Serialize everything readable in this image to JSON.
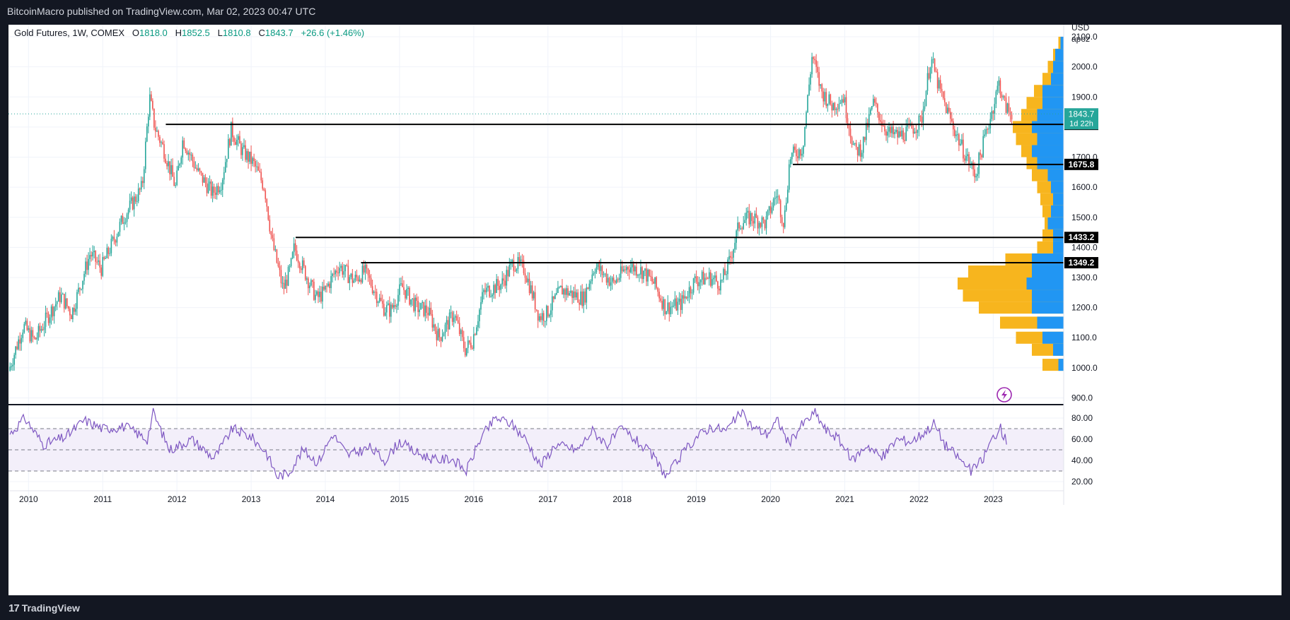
{
  "header": {
    "publisher": "BitcoinMacro published on TradingView.com, Mar 02, 2023 00:47 UTC"
  },
  "footer": {
    "brand": "TradingView",
    "brand_icon": "tradingview-logo-icon"
  },
  "legend": {
    "symbol": "Gold Futures, 1W, COMEX",
    "open_label": "O",
    "open": "1818.0",
    "high_label": "H",
    "high": "1852.5",
    "low_label": "L",
    "low": "1810.8",
    "close_label": "C",
    "close": "1843.7",
    "change": "+26.6 (+1.46%)"
  },
  "axis": {
    "currency": "USD",
    "unit": "apoz"
  },
  "colors": {
    "up": "#26a69a",
    "down": "#ef5350",
    "level_line": "#000000",
    "volume_profile_up": "#2196f3",
    "volume_profile_down": "#f7b51e",
    "rsi_line": "#7e57c2",
    "rsi_band": "#f3effa",
    "price_line": "#26a69a"
  },
  "chart_data": [
    {
      "type": "candlestick",
      "series_name": "Gold Futures, 1W, COMEX",
      "ylim": [
        880,
        2140
      ],
      "y_ticks": [
        900,
        1000,
        1100,
        1200,
        1300,
        1400,
        1500,
        1600,
        1700,
        1800,
        1900,
        2000,
        2100
      ],
      "x_ticks": [
        "2010",
        "2011",
        "2012",
        "2013",
        "2014",
        "2015",
        "2016",
        "2017",
        "2018",
        "2019",
        "2020",
        "2021",
        "2022",
        "2023"
      ],
      "xlim": [
        2009.73,
        2023.95
      ],
      "price_path": [
        [
          2009.75,
          990
        ],
        [
          2009.95,
          1140
        ],
        [
          2010.1,
          1090
        ],
        [
          2010.3,
          1180
        ],
        [
          2010.45,
          1240
        ],
        [
          2010.6,
          1180
        ],
        [
          2010.85,
          1380
        ],
        [
          2011.0,
          1330
        ],
        [
          2011.3,
          1500
        ],
        [
          2011.45,
          1560
        ],
        [
          2011.55,
          1600
        ],
        [
          2011.65,
          1900
        ],
        [
          2011.72,
          1800
        ],
        [
          2011.85,
          1720
        ],
        [
          2012.0,
          1600
        ],
        [
          2012.1,
          1760
        ],
        [
          2012.3,
          1650
        ],
        [
          2012.5,
          1580
        ],
        [
          2012.62,
          1620
        ],
        [
          2012.75,
          1790
        ],
        [
          2012.9,
          1720
        ],
        [
          2013.05,
          1680
        ],
        [
          2013.2,
          1600
        ],
        [
          2013.3,
          1420
        ],
        [
          2013.45,
          1260
        ],
        [
          2013.55,
          1330
        ],
        [
          2013.6,
          1400
        ],
        [
          2013.72,
          1330
        ],
        [
          2013.9,
          1230
        ],
        [
          2014.0,
          1250
        ],
        [
          2014.2,
          1340
        ],
        [
          2014.4,
          1290
        ],
        [
          2014.55,
          1320
        ],
        [
          2014.8,
          1200
        ],
        [
          2014.9,
          1190
        ],
        [
          2015.05,
          1270
        ],
        [
          2015.25,
          1200
        ],
        [
          2015.4,
          1190
        ],
        [
          2015.55,
          1100
        ],
        [
          2015.75,
          1180
        ],
        [
          2015.9,
          1060
        ],
        [
          2016.0,
          1090
        ],
        [
          2016.15,
          1250
        ],
        [
          2016.4,
          1280
        ],
        [
          2016.55,
          1350
        ],
        [
          2016.7,
          1330
        ],
        [
          2016.9,
          1170
        ],
        [
          2017.0,
          1180
        ],
        [
          2017.2,
          1260
        ],
        [
          2017.5,
          1230
        ],
        [
          2017.65,
          1340
        ],
        [
          2017.9,
          1280
        ],
        [
          2018.1,
          1340
        ],
        [
          2018.3,
          1320
        ],
        [
          2018.45,
          1280
        ],
        [
          2018.6,
          1200
        ],
        [
          2018.8,
          1210
        ],
        [
          2019.0,
          1290
        ],
        [
          2019.2,
          1300
        ],
        [
          2019.35,
          1280
        ],
        [
          2019.45,
          1340
        ],
        [
          2019.6,
          1480
        ],
        [
          2019.75,
          1500
        ],
        [
          2019.95,
          1480
        ],
        [
          2020.1,
          1580
        ],
        [
          2020.2,
          1480
        ],
        [
          2020.28,
          1700
        ],
        [
          2020.45,
          1730
        ],
        [
          2020.58,
          2040
        ],
        [
          2020.7,
          1920
        ],
        [
          2020.85,
          1870
        ],
        [
          2021.0,
          1900
        ],
        [
          2021.15,
          1720
        ],
        [
          2021.25,
          1730
        ],
        [
          2021.4,
          1880
        ],
        [
          2021.6,
          1780
        ],
        [
          2021.75,
          1770
        ],
        [
          2021.9,
          1790
        ],
        [
          2022.05,
          1820
        ],
        [
          2022.18,
          2030
        ],
        [
          2022.3,
          1920
        ],
        [
          2022.45,
          1820
        ],
        [
          2022.6,
          1730
        ],
        [
          2022.78,
          1640
        ],
        [
          2022.9,
          1760
        ],
        [
          2023.0,
          1850
        ],
        [
          2023.1,
          1950
        ],
        [
          2023.16,
          1880
        ],
        [
          2023.25,
          1843
        ]
      ],
      "last_price": {
        "value": 1843.7,
        "label": "1843.7",
        "countdown": "1d 22h"
      },
      "levels": [
        {
          "label": "1808.8",
          "value": 1808.8,
          "from_year": 2011.85
        },
        {
          "label": "1675.8",
          "value": 1675.8,
          "from_year": 2020.3
        },
        {
          "label": "1433.2",
          "value": 1433.2,
          "from_year": 2013.6
        },
        {
          "label": "1349.2",
          "value": 1349.2,
          "from_year": 2014.48
        }
      ],
      "volume_profile": [
        [
          1010,
          0.2,
          0.05
        ],
        [
          1060,
          0.3,
          0.1
        ],
        [
          1100,
          0.45,
          0.2
        ],
        [
          1150,
          0.6,
          0.25
        ],
        [
          1200,
          0.8,
          0.3
        ],
        [
          1240,
          0.95,
          0.3
        ],
        [
          1280,
          1.0,
          0.35
        ],
        [
          1320,
          0.9,
          0.3
        ],
        [
          1360,
          0.55,
          0.3
        ],
        [
          1400,
          0.25,
          0.1
        ],
        [
          1440,
          0.2,
          0.1
        ],
        [
          1480,
          0.18,
          0.15
        ],
        [
          1520,
          0.2,
          0.12
        ],
        [
          1560,
          0.22,
          0.1
        ],
        [
          1600,
          0.25,
          0.12
        ],
        [
          1640,
          0.3,
          0.15
        ],
        [
          1680,
          0.35,
          0.25
        ],
        [
          1720,
          0.4,
          0.3
        ],
        [
          1760,
          0.45,
          0.25
        ],
        [
          1800,
          0.48,
          0.3
        ],
        [
          1840,
          0.4,
          0.25
        ],
        [
          1880,
          0.35,
          0.2
        ],
        [
          1920,
          0.28,
          0.2
        ],
        [
          1960,
          0.2,
          0.12
        ],
        [
          2000,
          0.15,
          0.1
        ],
        [
          2040,
          0.1,
          0.08
        ],
        [
          2080,
          0.05,
          0.03
        ]
      ]
    },
    {
      "type": "line",
      "series_name": "RSI",
      "ylim": [
        12,
        92
      ],
      "y_ticks": [
        20,
        40,
        60,
        80
      ],
      "bands": {
        "upper": 70,
        "middle": 50,
        "lower": 30
      },
      "x": [
        2009.75,
        2009.95,
        2010.2,
        2010.5,
        2010.75,
        2011.0,
        2011.3,
        2011.6,
        2011.68,
        2011.9,
        2012.2,
        2012.5,
        2012.75,
        2013.0,
        2013.2,
        2013.35,
        2013.5,
        2013.7,
        2013.9,
        2014.1,
        2014.3,
        2014.6,
        2014.8,
        2015.0,
        2015.2,
        2015.5,
        2015.7,
        2015.9,
        2016.1,
        2016.3,
        2016.5,
        2016.7,
        2016.9,
        2017.1,
        2017.4,
        2017.6,
        2017.8,
        2018.0,
        2018.2,
        2018.4,
        2018.6,
        2018.8,
        2019.0,
        2019.2,
        2019.4,
        2019.6,
        2019.75,
        2019.95,
        2020.1,
        2020.25,
        2020.4,
        2020.6,
        2020.75,
        2020.9,
        2021.1,
        2021.3,
        2021.5,
        2021.7,
        2021.9,
        2022.1,
        2022.2,
        2022.35,
        2022.5,
        2022.7,
        2022.85,
        2023.0,
        2023.1,
        2023.2
      ],
      "values": [
        65,
        80,
        55,
        62,
        78,
        70,
        72,
        60,
        85,
        50,
        60,
        42,
        70,
        62,
        48,
        25,
        28,
        50,
        38,
        65,
        45,
        52,
        40,
        58,
        48,
        40,
        42,
        30,
        62,
        80,
        75,
        60,
        35,
        55,
        50,
        68,
        55,
        70,
        58,
        45,
        25,
        45,
        62,
        72,
        68,
        85,
        72,
        65,
        78,
        55,
        72,
        85,
        68,
        62,
        40,
        55,
        42,
        60,
        58,
        68,
        75,
        55,
        45,
        30,
        40,
        62,
        70,
        55
      ]
    }
  ]
}
